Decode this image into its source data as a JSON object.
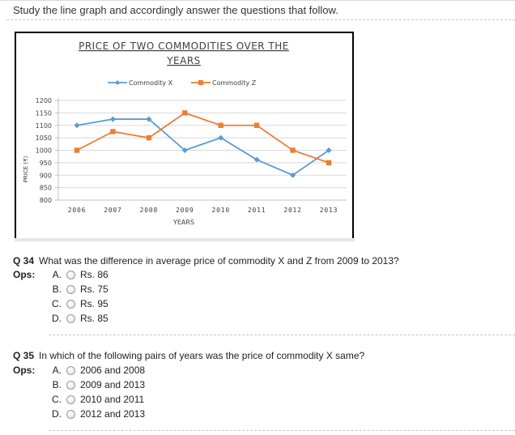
{
  "instructions": "Study the line graph and accordingly answer the questions that follow.",
  "chart_data": {
    "type": "line",
    "title": "PRICE OF TWO COMMODITIES OVER THE YEARS",
    "title_line1": "PRICE OF TWO COMMODITIES OVER THE",
    "title_line2": "YEARS",
    "xlabel": "YEARS",
    "ylabel": "PRICE (₹)",
    "categories": [
      "2006",
      "2007",
      "2008",
      "2009",
      "2010",
      "2011",
      "2012",
      "2013"
    ],
    "yticks": [
      "1200",
      "1150",
      "1100",
      "1050",
      "1000",
      "950",
      "900",
      "850",
      "800"
    ],
    "ylim": [
      800,
      1200
    ],
    "grid": true,
    "legend_position": "top",
    "series": [
      {
        "name": "Commodity X",
        "color": "#5b9bd5",
        "marker": "diamond",
        "values": [
          1100,
          1125,
          1125,
          1000,
          1050,
          962,
          900,
          1000
        ]
      },
      {
        "name": "Commodity Z",
        "color": "#ed7d31",
        "marker": "square",
        "values": [
          1000,
          1075,
          1050,
          1150,
          1100,
          1100,
          1000,
          950
        ]
      }
    ]
  },
  "questions": [
    {
      "number": "Q 34",
      "text": "What was the difference in average price of commodity X and Z from 2009 to 2013?",
      "ops_label": "Ops:",
      "options": [
        {
          "letter": "A.",
          "text": "Rs. 86"
        },
        {
          "letter": "B.",
          "text": "Rs. 75"
        },
        {
          "letter": "C.",
          "text": "Rs. 95"
        },
        {
          "letter": "D.",
          "text": "Rs. 85"
        }
      ]
    },
    {
      "number": "Q 35",
      "text": "In which of the following pairs of years was the price of commodity X same?",
      "ops_label": "Ops:",
      "options": [
        {
          "letter": "A.",
          "text": "2006 and 2008"
        },
        {
          "letter": "B.",
          "text": "2009 and 2013"
        },
        {
          "letter": "C.",
          "text": "2010 and 2011"
        },
        {
          "letter": "D.",
          "text": "2012 and 2013"
        }
      ]
    }
  ]
}
